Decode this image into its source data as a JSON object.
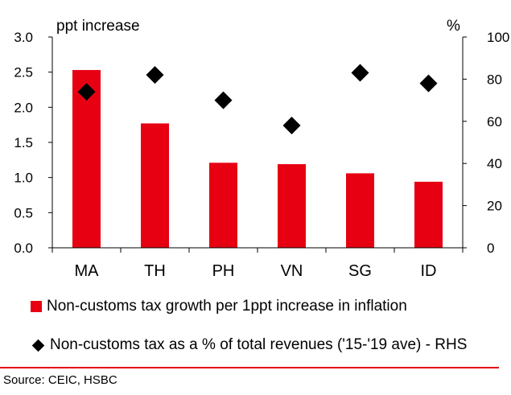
{
  "chart_data": {
    "type": "bar",
    "categories": [
      "MA",
      "TH",
      "PH",
      "VN",
      "SG",
      "ID"
    ],
    "left_axis": {
      "unit": "ppt increase",
      "ylim": [
        0,
        3.0
      ],
      "ticks": [
        "0.0",
        "0.5",
        "1.0",
        "1.5",
        "2.0",
        "2.5",
        "3.0"
      ]
    },
    "right_axis": {
      "unit": "%",
      "ylim": [
        0,
        100
      ],
      "ticks": [
        "0",
        "20",
        "40",
        "60",
        "80",
        "100"
      ]
    },
    "series": [
      {
        "name": "Non-customs tax growth per 1ppt increase in inflation",
        "kind": "bar",
        "axis": "left",
        "values": [
          2.53,
          1.77,
          1.21,
          1.19,
          1.06,
          0.94
        ],
        "color": "#e60012"
      },
      {
        "name": "Non-customs tax as a % of total revenues ('15-'19 ave) - RHS",
        "kind": "marker",
        "marker": "diamond",
        "axis": "right",
        "values": [
          74,
          82,
          70,
          58,
          83,
          78
        ],
        "color": "#000000"
      }
    ],
    "grid": false,
    "legend_position": "bottom"
  },
  "source": "Source: CEIC, HSBC"
}
